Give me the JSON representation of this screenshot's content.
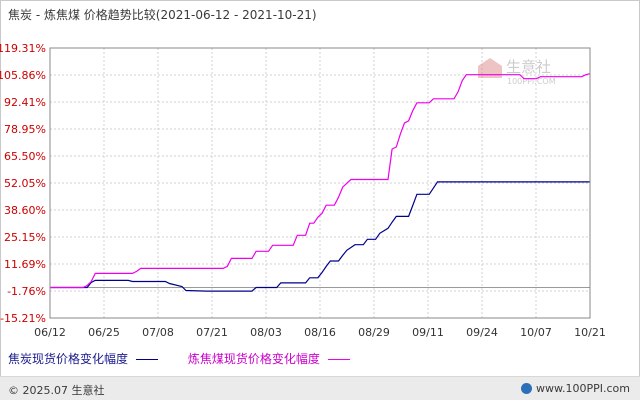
{
  "title": "焦炭 - 炼焦煤  价格趋势比较(2021-06-12 - 2021-10-21)",
  "watermark": {
    "brand": "生意社",
    "url": "100PPI.COM"
  },
  "legend": {
    "series1": "焦炭现货价格变化幅度",
    "series2": "炼焦煤现货价格变化幅度"
  },
  "footer": {
    "copyright": "© 2025.07 生意社",
    "site": "www.100PPI.com"
  },
  "colors": {
    "series1": "#00008b",
    "series2": "#ee00ee",
    "ytick": "#cc0000",
    "grid": "#d0d0d0"
  },
  "chart_data": {
    "type": "line",
    "ylim": [
      -15.21,
      119.31
    ],
    "y_ticks": [
      "119.31%",
      "105.86%",
      "92.41%",
      "78.95%",
      "65.50%",
      "52.05%",
      "38.60%",
      "25.15%",
      "11.69%",
      "-1.76%",
      "-15.21%"
    ],
    "x_ticks": [
      "06/12",
      "06/25",
      "07/08",
      "07/21",
      "08/03",
      "08/16",
      "08/29",
      "09/11",
      "09/24",
      "10/07",
      "10/21"
    ],
    "x_start": "2021-06-12",
    "x_end": "2021-10-21",
    "series": [
      {
        "name": "焦炭现货价格变化幅度",
        "points": [
          [
            "2021-06-12",
            0
          ],
          [
            "2021-06-21",
            0
          ],
          [
            "2021-06-22",
            2.5
          ],
          [
            "2021-06-23",
            3.5
          ],
          [
            "2021-07-01",
            3.5
          ],
          [
            "2021-07-02",
            3.0
          ],
          [
            "2021-07-10",
            3.0
          ],
          [
            "2021-07-11",
            2.0
          ],
          [
            "2021-07-14",
            0.5
          ],
          [
            "2021-07-15",
            -1.5
          ],
          [
            "2021-07-20",
            -1.8
          ],
          [
            "2021-07-31",
            -1.8
          ],
          [
            "2021-08-01",
            0
          ],
          [
            "2021-08-06",
            0
          ],
          [
            "2021-08-07",
            2.3
          ],
          [
            "2021-08-13",
            2.3
          ],
          [
            "2021-08-14",
            4.8
          ],
          [
            "2021-08-16",
            4.8
          ],
          [
            "2021-08-17",
            7.5
          ],
          [
            "2021-08-18",
            10.5
          ],
          [
            "2021-08-19",
            13.2
          ],
          [
            "2021-08-21",
            13.2
          ],
          [
            "2021-08-22",
            16
          ],
          [
            "2021-08-23",
            18.5
          ],
          [
            "2021-08-25",
            21.3
          ],
          [
            "2021-08-27",
            21.3
          ],
          [
            "2021-08-28",
            24
          ],
          [
            "2021-08-30",
            24
          ],
          [
            "2021-08-31",
            27
          ],
          [
            "2021-09-02",
            29.5
          ],
          [
            "2021-09-03",
            32.5
          ],
          [
            "2021-09-04",
            35.4
          ],
          [
            "2021-09-07",
            35.4
          ],
          [
            "2021-09-08",
            40.8
          ],
          [
            "2021-09-09",
            46.4
          ],
          [
            "2021-09-12",
            46.4
          ],
          [
            "2021-09-13",
            49.5
          ],
          [
            "2021-09-14",
            52.6
          ],
          [
            "2021-10-21",
            52.6
          ]
        ]
      },
      {
        "name": "炼焦煤现货价格变化幅度",
        "points": [
          [
            "2021-06-12",
            0
          ],
          [
            "2021-06-20",
            0
          ],
          [
            "2021-06-21",
            1
          ],
          [
            "2021-06-22",
            3
          ],
          [
            "2021-06-23",
            7
          ],
          [
            "2021-07-02",
            7
          ],
          [
            "2021-07-03",
            8
          ],
          [
            "2021-07-04",
            9.5
          ],
          [
            "2021-07-24",
            9.5
          ],
          [
            "2021-07-25",
            10.5
          ],
          [
            "2021-07-26",
            14.5
          ],
          [
            "2021-07-31",
            14.5
          ],
          [
            "2021-08-01",
            18
          ],
          [
            "2021-08-04",
            18
          ],
          [
            "2021-08-05",
            21
          ],
          [
            "2021-08-10",
            21
          ],
          [
            "2021-08-11",
            26
          ],
          [
            "2021-08-13",
            26
          ],
          [
            "2021-08-14",
            32
          ],
          [
            "2021-08-15",
            32
          ],
          [
            "2021-08-16",
            35
          ],
          [
            "2021-08-17",
            37
          ],
          [
            "2021-08-18",
            41
          ],
          [
            "2021-08-20",
            41
          ],
          [
            "2021-08-21",
            45
          ],
          [
            "2021-08-22",
            50
          ],
          [
            "2021-08-24",
            53.8
          ],
          [
            "2021-09-02",
            53.8
          ],
          [
            "2021-09-03",
            69
          ],
          [
            "2021-09-04",
            70
          ],
          [
            "2021-09-05",
            76.5
          ],
          [
            "2021-09-06",
            82
          ],
          [
            "2021-09-07",
            83
          ],
          [
            "2021-09-08",
            88
          ],
          [
            "2021-09-09",
            92
          ],
          [
            "2021-09-12",
            92
          ],
          [
            "2021-09-13",
            94
          ],
          [
            "2021-09-18",
            94
          ],
          [
            "2021-09-19",
            97.5
          ],
          [
            "2021-09-20",
            103
          ],
          [
            "2021-09-21",
            106
          ],
          [
            "2021-10-04",
            106
          ],
          [
            "2021-10-05",
            104
          ],
          [
            "2021-10-08",
            104
          ],
          [
            "2021-10-09",
            105
          ],
          [
            "2021-10-19",
            105
          ],
          [
            "2021-10-20",
            106
          ],
          [
            "2021-10-21",
            106.5
          ]
        ]
      }
    ]
  }
}
